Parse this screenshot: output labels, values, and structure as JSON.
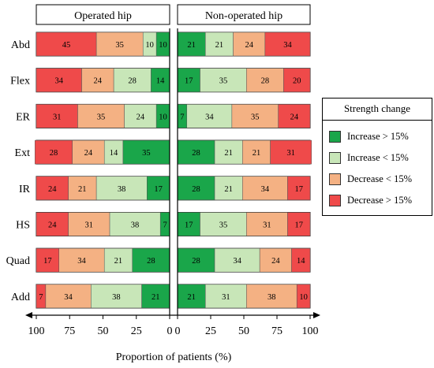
{
  "chart_data": {
    "type": "bar",
    "orientation": "horizontal-stacked-diverging",
    "panels": [
      "Operated hip",
      "Non-operated hip"
    ],
    "categories": [
      "Abd",
      "Flex",
      "ER",
      "Ext",
      "IR",
      "HS",
      "Quad",
      "Add"
    ],
    "xlabel": "Proportion of patients (%)",
    "left_ticks": [
      "100",
      "75",
      "50",
      "25",
      "0"
    ],
    "right_ticks": [
      "0",
      "25",
      "50",
      "75",
      "100"
    ],
    "xlim": [
      0,
      100
    ],
    "legend_title": "Strength change",
    "legend_position": "right",
    "series": [
      {
        "name": "Increase > 15%",
        "color": "#1aa64a",
        "operated": [
          10,
          14,
          10,
          35,
          17,
          7,
          28,
          21
        ],
        "non_operated": [
          21,
          17,
          7,
          28,
          28,
          17,
          28,
          21
        ]
      },
      {
        "name": "Increase < 15%",
        "color": "#c8e6b8",
        "operated": [
          10,
          28,
          24,
          14,
          38,
          38,
          21,
          38
        ],
        "non_operated": [
          21,
          35,
          34,
          21,
          21,
          35,
          34,
          31
        ]
      },
      {
        "name": "Decrease < 15%",
        "color": "#f4b183",
        "operated": [
          35,
          24,
          35,
          24,
          21,
          31,
          34,
          34
        ],
        "non_operated": [
          24,
          28,
          35,
          21,
          34,
          31,
          24,
          38
        ]
      },
      {
        "name": "Decrease > 15%",
        "color": "#ef4a4a",
        "operated": [
          45,
          34,
          31,
          28,
          24,
          24,
          17,
          7
        ],
        "non_operated": [
          34,
          20,
          24,
          31,
          17,
          17,
          14,
          10
        ]
      }
    ],
    "grid": false
  }
}
